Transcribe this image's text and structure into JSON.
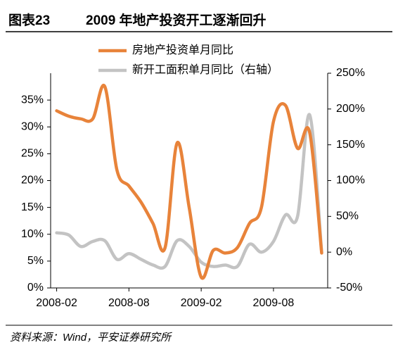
{
  "chart_data": {
    "type": "line",
    "title_label": "图表23",
    "title": "2009 年地产投资开工逐渐回升",
    "source": "资料来源：Wind，平安证券研究所",
    "categories": [
      "2008-02",
      null,
      null,
      null,
      null,
      null,
      "2008-08",
      null,
      null,
      null,
      null,
      null,
      "2009-02",
      null,
      null,
      null,
      null,
      null,
      "2009-08",
      null,
      null,
      null,
      null
    ],
    "series": [
      {
        "name": "房地产投资单月同比",
        "color": "#e8833a",
        "axis": "y",
        "values": [
          33,
          32,
          31.5,
          31.5,
          37.5,
          22,
          19,
          16,
          12,
          7.5,
          27,
          15,
          2,
          7,
          6.5,
          7.5,
          12,
          15,
          31,
          34,
          26,
          29,
          6.5
        ]
      },
      {
        "name": "新开工面积单月同比（右轴）",
        "color": "#c3c3c3",
        "axis": "y2",
        "values": [
          27,
          24,
          8,
          15,
          16,
          -10,
          -2,
          -10,
          -18,
          -20,
          16,
          8,
          -14,
          -20,
          -18,
          -20,
          11,
          0,
          15,
          52,
          50,
          192,
          0
        ]
      }
    ],
    "ylim": [
      0,
      40
    ],
    "yticks": [
      {
        "value": 0,
        "label": "0%"
      },
      {
        "value": 5,
        "label": "5%"
      },
      {
        "value": 10,
        "label": "10%"
      },
      {
        "value": 15,
        "label": "15%"
      },
      {
        "value": 20,
        "label": "20%"
      },
      {
        "value": 25,
        "label": "25%"
      },
      {
        "value": 30,
        "label": "30%"
      },
      {
        "value": 35,
        "label": "35%"
      }
    ],
    "y2lim": [
      -50,
      250
    ],
    "y2ticks": [
      {
        "value": -50,
        "label": "-50%"
      },
      {
        "value": 0,
        "label": "0%"
      },
      {
        "value": 50,
        "label": "50%"
      },
      {
        "value": 100,
        "label": "100%"
      },
      {
        "value": 150,
        "label": "150%"
      },
      {
        "value": 200,
        "label": "200%"
      },
      {
        "value": 250,
        "label": "250%"
      }
    ]
  }
}
